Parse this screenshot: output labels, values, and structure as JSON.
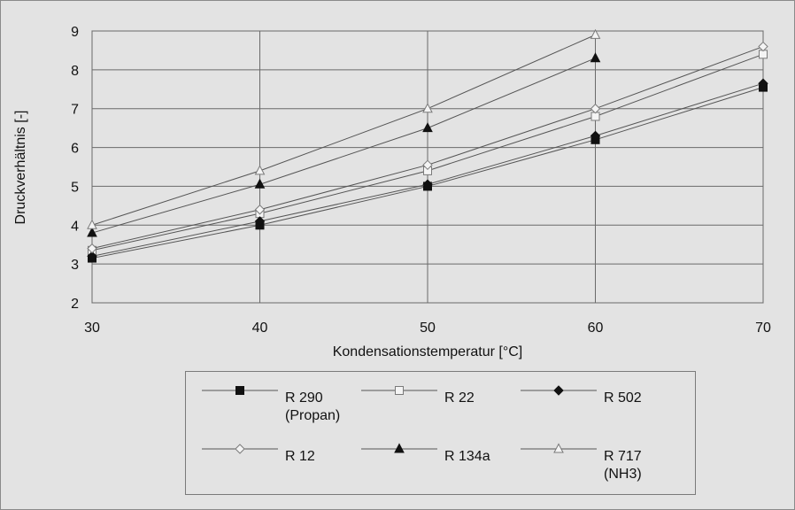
{
  "chart_data": {
    "type": "line",
    "title": "",
    "xlabel": "Kondensationstemperatur [°C]",
    "ylabel": "Druckverhältnis [-]",
    "xlim": [
      30,
      70
    ],
    "ylim": [
      2,
      9
    ],
    "xticks": [
      "30",
      "40",
      "50",
      "60",
      "70"
    ],
    "yticks": [
      "2",
      "3",
      "4",
      "5",
      "6",
      "7",
      "8",
      "9"
    ],
    "grid": true,
    "legend_position": "bottom",
    "series": [
      {
        "name": "R 290 (Propan)",
        "marker": "filled-square",
        "x": [
          30,
          40,
          50,
          60,
          70
        ],
        "y": [
          3.15,
          4.0,
          5.0,
          6.2,
          7.55
        ]
      },
      {
        "name": "R 22",
        "marker": "open-square",
        "x": [
          30,
          40,
          50,
          60,
          70
        ],
        "y": [
          3.35,
          4.3,
          5.4,
          6.8,
          8.4
        ]
      },
      {
        "name": "R 502",
        "marker": "filled-diamond",
        "x": [
          30,
          40,
          50,
          60,
          70
        ],
        "y": [
          3.2,
          4.1,
          5.05,
          6.3,
          7.65
        ]
      },
      {
        "name": "R 12",
        "marker": "open-diamond",
        "x": [
          30,
          40,
          50,
          60,
          70
        ],
        "y": [
          3.4,
          4.4,
          5.55,
          7.0,
          8.6
        ]
      },
      {
        "name": "R 134a",
        "marker": "filled-triangle",
        "x": [
          30,
          40,
          50,
          60
        ],
        "y": [
          3.8,
          5.05,
          6.5,
          8.3
        ]
      },
      {
        "name": "R 717 (NH3)",
        "marker": "open-triangle",
        "x": [
          30,
          40,
          50,
          60
        ],
        "y": [
          4.0,
          5.4,
          7.0,
          8.9
        ]
      }
    ]
  },
  "legend": {
    "items": [
      {
        "label": "R 290\n(Propan)",
        "marker": "filled-square"
      },
      {
        "label": "R 22",
        "marker": "open-square"
      },
      {
        "label": "R 502",
        "marker": "filled-diamond"
      },
      {
        "label": "R 12",
        "marker": "open-diamond"
      },
      {
        "label": "R 134a",
        "marker": "filled-triangle"
      },
      {
        "label": "R 717\n(NH3)",
        "marker": "open-triangle"
      }
    ]
  }
}
